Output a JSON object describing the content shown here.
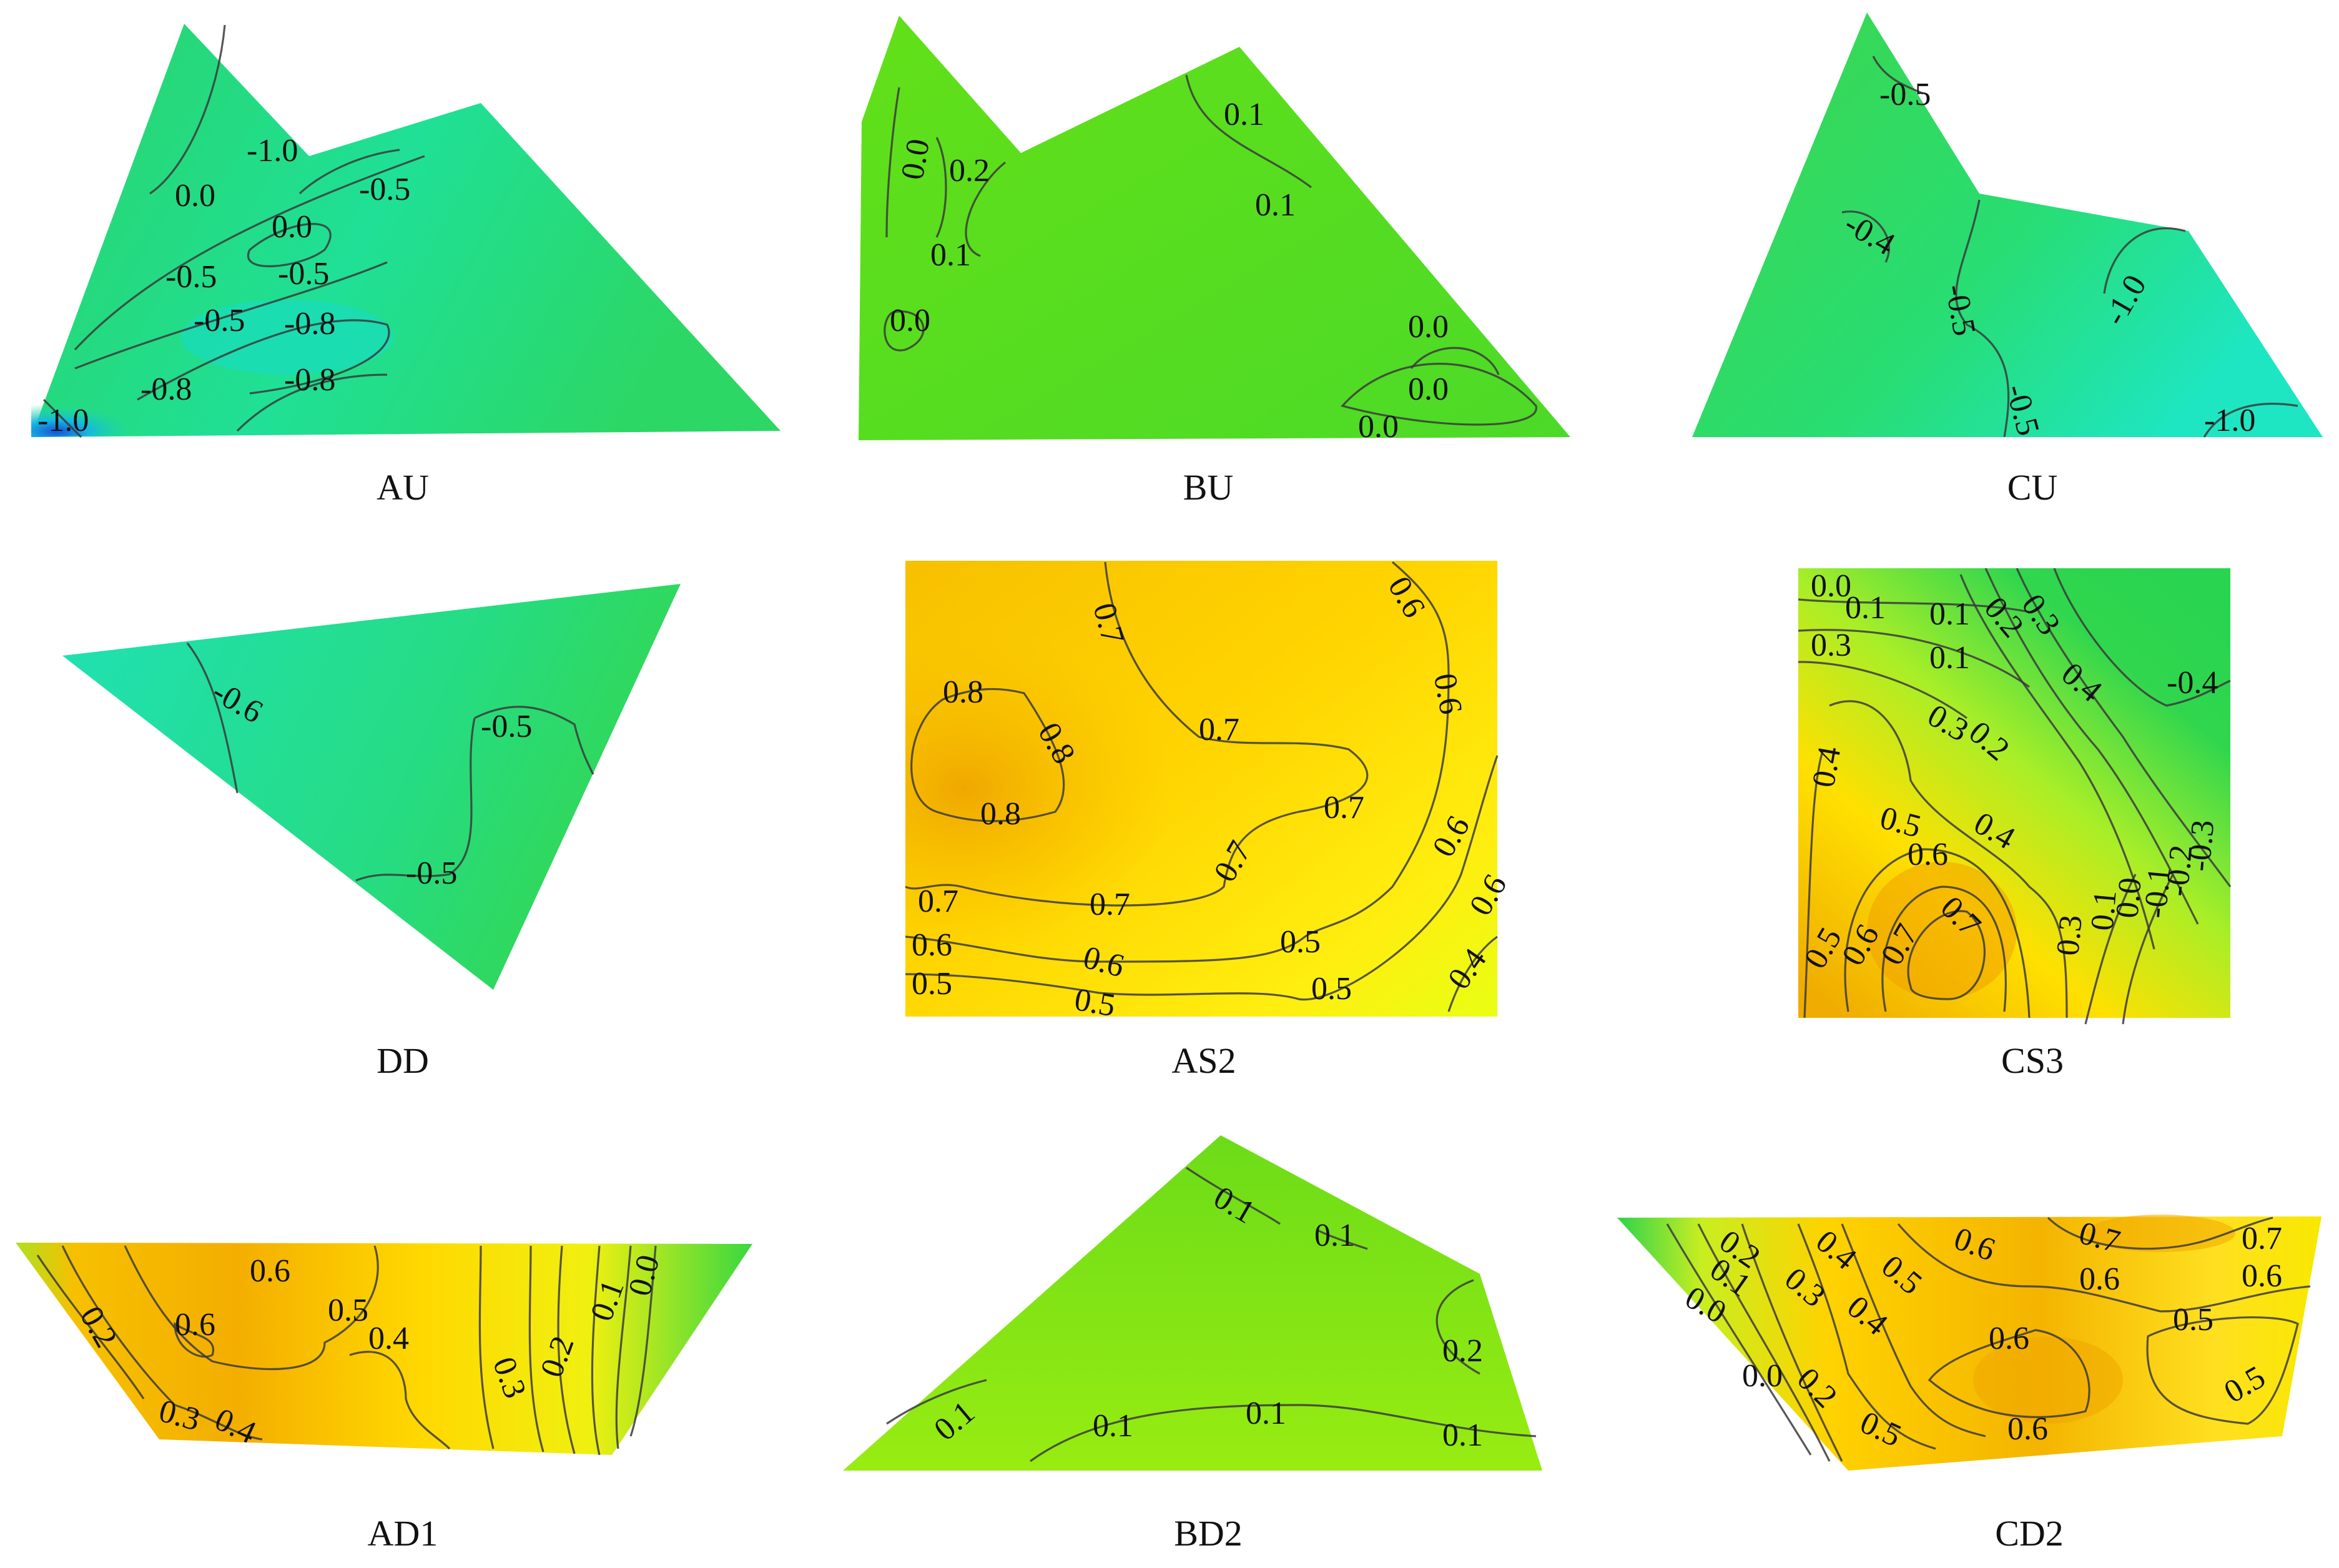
{
  "figure": {
    "panels": [
      {
        "id": "AU",
        "label": "AU"
      },
      {
        "id": "BU",
        "label": "BU"
      },
      {
        "id": "CU",
        "label": "CU"
      },
      {
        "id": "DD",
        "label": "DD"
      },
      {
        "id": "AS2",
        "label": "AS2"
      },
      {
        "id": "CS3",
        "label": "CS3"
      },
      {
        "id": "AD1",
        "label": "AD1"
      },
      {
        "id": "BD2",
        "label": "BD2"
      },
      {
        "id": "CD2",
        "label": "CD2"
      }
    ]
  },
  "chart_data": [
    {
      "type": "heatmap",
      "title": "AU",
      "colormap": "blue-green-yellow-orange",
      "contour_labels": [
        "0.0",
        "-1.0",
        "-0.5",
        "0.0",
        "-0.5",
        "-0.5",
        "-0.5",
        "-0.8",
        "-0.8",
        "-0.8",
        "-1.0"
      ],
      "fill_colors": [
        "#2fd65a",
        "#1fe08a",
        "#16e8b8",
        "#1a5fd8"
      ]
    },
    {
      "type": "heatmap",
      "title": "BU",
      "colormap": "blue-green-yellow-orange",
      "contour_labels": [
        "0.0",
        "0.2",
        "0.1",
        "0.0",
        "0.1",
        "0.1",
        "0.0",
        "0.0",
        "0.0"
      ],
      "fill_colors": [
        "#5de01a",
        "#4fdc28"
      ]
    },
    {
      "type": "heatmap",
      "title": "CU",
      "colormap": "blue-green-yellow-orange",
      "contour_labels": [
        "-0.5",
        "-0.4",
        "-0.5",
        "-1.0",
        "-0.5",
        "-1.0"
      ],
      "fill_colors": [
        "#3ad84a",
        "#22e08e",
        "#1ee6c2"
      ]
    },
    {
      "type": "heatmap",
      "title": "DD",
      "colormap": "blue-green-yellow-orange",
      "contour_labels": [
        "-0.6",
        "-0.5",
        "-0.5"
      ],
      "fill_colors": [
        "#22e0a4",
        "#2ed860"
      ]
    },
    {
      "type": "heatmap",
      "title": "AS2",
      "colormap": "blue-green-yellow-orange",
      "contour_labels": [
        "0.7",
        "0.6",
        "0.8",
        "0.8",
        "0.8",
        "0.7",
        "0.7",
        "0.6",
        "0.7",
        "0.7",
        "0.7",
        "0.6",
        "0.6",
        "0.6",
        "0.5",
        "0.6",
        "0.5",
        "0.5",
        "0.5",
        "0.4"
      ],
      "fill_colors": [
        "#f5b800",
        "#ffd400",
        "#ffee10",
        "#f0ff10"
      ]
    },
    {
      "type": "heatmap",
      "title": "CS3",
      "colormap": "blue-green-yellow-orange",
      "contour_labels": [
        "0.0",
        "0.1",
        "0.1",
        "0.2",
        "0.3",
        "0.3",
        "0.1",
        "0.4",
        "-0.4",
        "0.3",
        "0.2",
        "0.4",
        "0.5",
        "0.4",
        "0.6",
        "0.7",
        "0.7",
        "0.5",
        "0.6",
        "0.3",
        "0.1",
        "0.0",
        "-0.1",
        "-0.2",
        "-0.3"
      ],
      "fill_colors": [
        "#f5b000",
        "#ffe000",
        "#b8f020",
        "#2fd650"
      ]
    },
    {
      "type": "heatmap",
      "title": "AD1",
      "colormap": "blue-green-yellow-orange",
      "contour_labels": [
        "0.6",
        "0.2",
        "0.6",
        "0.5",
        "0.4",
        "0.3",
        "0.4",
        "0.3",
        "0.2",
        "0.1",
        "0.0"
      ],
      "fill_colors": [
        "#f4b000",
        "#ffd800",
        "#ecf000",
        "#40d840"
      ]
    },
    {
      "type": "heatmap",
      "title": "BD2",
      "colormap": "blue-green-yellow-orange",
      "contour_labels": [
        "0.1",
        "0.1",
        "0.2",
        "0.1",
        "0.1",
        "0.1",
        "0.1"
      ],
      "fill_colors": [
        "#7ee010",
        "#90ea10"
      ]
    },
    {
      "type": "heatmap",
      "title": "CD2",
      "colormap": "blue-green-yellow-orange",
      "contour_labels": [
        "0.2",
        "0.1",
        "0.0",
        "0.4",
        "0.3",
        "0.5",
        "0.4",
        "0.6",
        "0.7",
        "0.7",
        "0.6",
        "0.6",
        "0.5",
        "0.6",
        "0.0",
        "0.2",
        "0.5",
        "0.6",
        "0.5"
      ],
      "fill_colors": [
        "#f3ae00",
        "#ffd400",
        "#f8f020",
        "#30d848"
      ]
    }
  ]
}
